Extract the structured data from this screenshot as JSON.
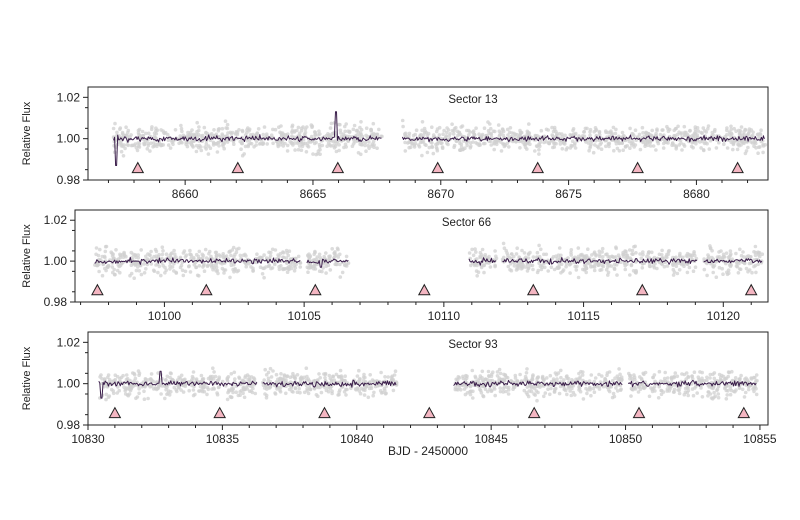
{
  "chart_data": [
    {
      "type": "scatter",
      "title": "Sector 13",
      "ylabel": "Relative Flux",
      "xlim": [
        8656.2,
        8682.8
      ],
      "ylim": [
        0.98,
        1.025
      ],
      "xticks": [
        8660,
        8665,
        8670,
        8675,
        8680
      ],
      "xtick_labels": [
        "8660",
        "8665",
        "8670",
        "8675",
        "8680"
      ],
      "yticks": [
        0.98,
        1.0,
        1.02
      ],
      "ytick_labels": [
        "0.98",
        "1.00",
        "1.02"
      ],
      "segments": [
        [
          8657.2,
          8667.7
        ],
        [
          8668.5,
          8682.7
        ]
      ],
      "gaps": [
        [
          8667.7,
          8668.5
        ]
      ],
      "series": [
        {
          "kind": "raw-points",
          "color": "#d0d0d0",
          "center": 1.0,
          "spread": 0.006
        },
        {
          "kind": "binned-line",
          "color": "#3a1d4a",
          "center": 1.0,
          "spread": 0.0013,
          "features": [
            {
              "x": 8657.3,
              "y": 0.987
            },
            {
              "x": 8665.9,
              "y": 1.013
            }
          ]
        }
      ],
      "transit_markers": {
        "marker": "triangle",
        "color": "#f4b6c2",
        "y": 0.986,
        "x": [
          8658.15,
          8662.06,
          8665.97,
          8669.88,
          8673.79,
          8677.7,
          8681.61
        ]
      }
    },
    {
      "type": "scatter",
      "title": "Sector 66",
      "ylabel": "Relative Flux",
      "xlim": [
        10096.8,
        10121.6
      ],
      "ylim": [
        0.98,
        1.025
      ],
      "xticks": [
        10100,
        10105,
        10110,
        10115,
        10120
      ],
      "xtick_labels": [
        "10100",
        "10105",
        "10110",
        "10115",
        "10120"
      ],
      "yticks": [
        0.98,
        1.0,
        1.02
      ],
      "ytick_labels": [
        "0.98",
        "1.00",
        "1.02"
      ],
      "segments": [
        [
          10097.5,
          10104.9
        ],
        [
          10105.1,
          10106.6
        ],
        [
          10110.9,
          10111.9
        ],
        [
          10112.1,
          10119.1
        ],
        [
          10119.3,
          10121.4
        ]
      ],
      "gaps": [
        [
          10106.6,
          10110.9
        ]
      ],
      "series": [
        {
          "kind": "raw-points",
          "color": "#d0d0d0",
          "center": 1.0,
          "spread": 0.006
        },
        {
          "kind": "binned-line",
          "color": "#3a1d4a",
          "center": 1.0,
          "spread": 0.0013,
          "features": [
            {
              "x": 10105.6,
              "y": 0.997
            },
            {
              "x": 10111.3,
              "y": 0.998
            }
          ]
        }
      ],
      "transit_markers": {
        "marker": "triangle",
        "color": "#f4b6c2",
        "y": 0.986,
        "x": [
          10097.6,
          10101.5,
          10105.4,
          10109.3,
          10113.2,
          10117.1,
          10121.0
        ]
      }
    },
    {
      "type": "scatter",
      "title": "Sector 93",
      "ylabel": "Relative Flux",
      "xlabel": "BJD - 2450000",
      "xlim": [
        10830.0,
        10855.3
      ],
      "ylim": [
        0.98,
        1.025
      ],
      "xticks": [
        10830,
        10835,
        10840,
        10845,
        10850,
        10855
      ],
      "xtick_labels": [
        "10830",
        "10835",
        "10840",
        "10845",
        "10850",
        "10855"
      ],
      "yticks": [
        0.98,
        1.0,
        1.02
      ],
      "ytick_labels": [
        "0.98",
        "1.00",
        "1.02"
      ],
      "segments": [
        [
          10830.4,
          10836.3
        ],
        [
          10836.5,
          10841.5
        ],
        [
          10843.6,
          10849.9
        ],
        [
          10850.1,
          10854.9
        ]
      ],
      "gaps": [
        [
          10841.5,
          10843.6
        ]
      ],
      "series": [
        {
          "kind": "raw-points",
          "color": "#d0d0d0",
          "center": 1.0,
          "spread": 0.006
        },
        {
          "kind": "binned-line",
          "color": "#3a1d4a",
          "center": 1.0,
          "spread": 0.0013,
          "features": [
            {
              "x": 10830.5,
              "y": 0.993
            },
            {
              "x": 10832.7,
              "y": 1.006
            }
          ]
        }
      ],
      "transit_markers": {
        "marker": "triangle",
        "color": "#f4b6c2",
        "y": 0.986,
        "x": [
          10831.0,
          10834.9,
          10838.8,
          10842.7,
          10846.6,
          10850.5,
          10854.4
        ]
      }
    }
  ]
}
